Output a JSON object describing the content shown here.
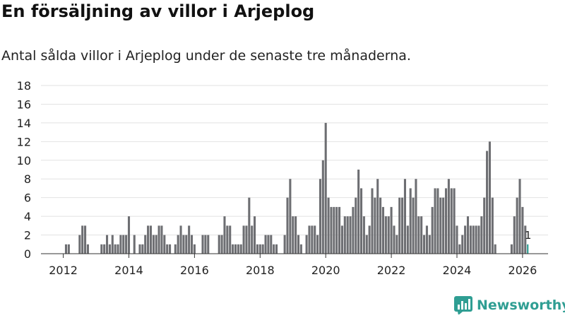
{
  "header": {
    "title": "En försäljning av villor i Arjeplog",
    "subtitle": "Antal sålda villor i Arjeplog under de senaste tre månaderna."
  },
  "brand": {
    "name": "Newsworthy",
    "color": "#2f9e93"
  },
  "chart_data": {
    "type": "bar",
    "title": "En försäljning av villor i Arjeplog",
    "subtitle": "Antal sålda villor i Arjeplog under de senaste tre månaderna.",
    "xlabel": "",
    "ylabel": "",
    "ylim": [
      0,
      18
    ],
    "y_ticks": [
      "0",
      "2",
      "4",
      "6",
      "8",
      "10",
      "12",
      "14",
      "16",
      "18"
    ],
    "x_ticks": [
      "2012",
      "2014",
      "2016",
      "2018",
      "2020",
      "2022",
      "2024",
      "2026"
    ],
    "x_start": "2012-01",
    "grid": true,
    "bar_color": "#6d6e72",
    "highlight_color": "#2f9e93",
    "highlight_label": "1",
    "values": [
      0,
      1,
      1,
      0,
      0,
      0,
      2,
      3,
      3,
      1,
      0,
      0,
      0,
      0,
      1,
      1,
      2,
      1,
      2,
      1,
      1,
      2,
      2,
      2,
      4,
      0,
      2,
      0,
      1,
      1,
      2,
      3,
      3,
      2,
      2,
      3,
      3,
      2,
      1,
      1,
      0,
      1,
      2,
      3,
      2,
      2,
      3,
      2,
      1,
      0,
      0,
      2,
      2,
      2,
      0,
      0,
      0,
      2,
      2,
      4,
      3,
      3,
      1,
      1,
      1,
      1,
      3,
      3,
      6,
      3,
      4,
      1,
      1,
      1,
      2,
      2,
      2,
      1,
      1,
      0,
      0,
      2,
      6,
      8,
      4,
      4,
      2,
      1,
      0,
      2,
      3,
      3,
      3,
      2,
      8,
      10,
      14,
      6,
      5,
      5,
      5,
      5,
      3,
      4,
      4,
      4,
      5,
      6,
      9,
      7,
      4,
      2,
      3,
      7,
      6,
      8,
      6,
      5,
      4,
      4,
      5,
      3,
      2,
      6,
      6,
      8,
      3,
      7,
      6,
      8,
      4,
      4,
      2,
      3,
      2,
      5,
      7,
      7,
      6,
      6,
      7,
      8,
      7,
      7,
      3,
      1,
      2,
      3,
      4,
      3,
      3,
      3,
      3,
      4,
      6,
      11,
      12,
      6,
      1,
      0,
      0,
      0,
      0,
      0,
      1,
      4,
      6,
      8,
      5,
      3,
      1
    ]
  }
}
